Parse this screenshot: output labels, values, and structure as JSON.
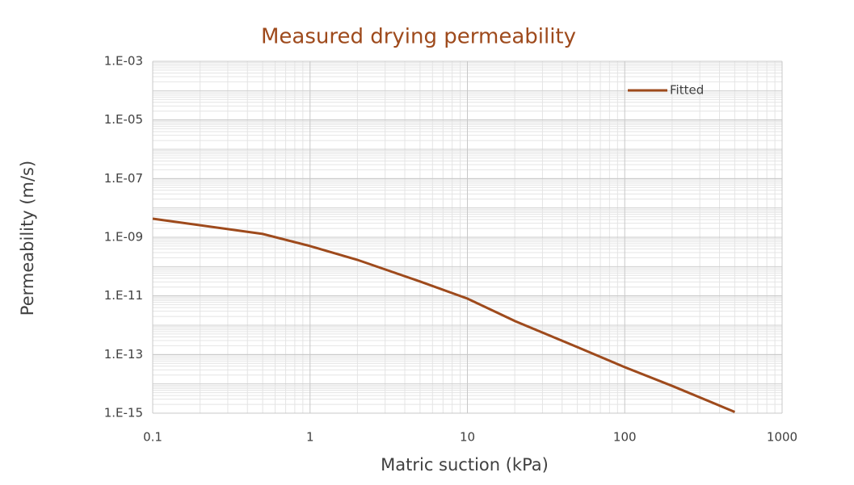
{
  "chart_data": {
    "type": "line",
    "title": "Measured drying permeability",
    "x_label": "Matric suction (kPa)",
    "y_label": "Permeability (m/s)",
    "x": [
      0.1,
      0.5,
      1,
      2,
      5,
      10,
      20,
      50,
      100,
      200,
      500
    ],
    "series": [
      {
        "name": "Fitted",
        "color": "#9e4a1c",
        "values": [
          4.3e-09,
          1.3e-09,
          5e-10,
          1.7e-10,
          3.1e-11,
          8.1e-12,
          1.4e-12,
          1.8e-13,
          3.7e-14,
          8.5e-15,
          1.1e-15
        ]
      }
    ],
    "xlim": [
      0.1,
      1000
    ],
    "xticks": [
      0.1,
      1,
      10,
      100,
      1000
    ],
    "ylim": [
      1e-15,
      0.001
    ],
    "yticks": [
      {
        "value": 1e-15,
        "label": "1.E-15"
      },
      {
        "value": 1e-13,
        "label": "1.E-13"
      },
      {
        "value": 1e-11,
        "label": "1.E-11"
      },
      {
        "value": 1e-09,
        "label": "1.E-09"
      },
      {
        "value": 1e-07,
        "label": "1.E-07"
      },
      {
        "value": 1e-05,
        "label": "1.E-05"
      },
      {
        "value": 0.001,
        "label": "1.E-03"
      }
    ],
    "xscale": "log",
    "yscale": "log",
    "grid": true,
    "legend": "top-right"
  }
}
